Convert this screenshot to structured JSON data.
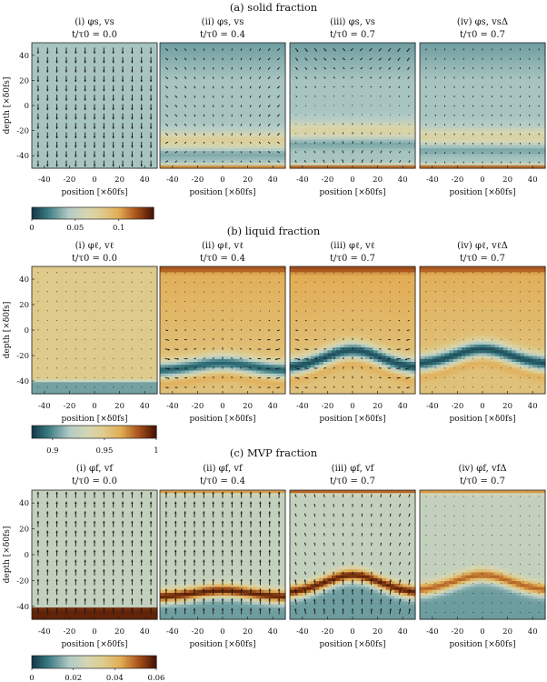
{
  "chart_data": [
    {
      "type": "heatmap",
      "title": "(a) solid fraction",
      "xlabel": "position [×δ0fs]",
      "ylabel": "depth [×δ0fs]",
      "xlim": [
        -50,
        50
      ],
      "ylim": [
        -50,
        50
      ],
      "xticks": [
        "-40",
        "-20",
        "0",
        "20",
        "40"
      ],
      "yticks": [
        "40",
        "20",
        "0",
        "-20",
        "-40"
      ],
      "colorbar": {
        "range": [
          0,
          0.14
        ],
        "ticks": [
          "0",
          "0.05",
          "0.1"
        ],
        "values": [
          0,
          0.05,
          0.1
        ]
      },
      "panels": [
        {
          "label": "(i) φs, vs",
          "time": "t/τ0 = 0.0",
          "field_kind": "uniform",
          "base": 0.04,
          "band_y": -48,
          "band_val": 0.04,
          "arrows": "down-uniform"
        },
        {
          "label": "(ii) φs, vs",
          "time": "t/τ0 = 0.4",
          "field_kind": "solid",
          "base": 0.04,
          "top_val": 0.02,
          "band_y": -28,
          "band_val": 0.075,
          "bottom_val": 0.12,
          "arrows": "converge"
        },
        {
          "label": "(iii) φs, vs",
          "time": "t/τ0 = 0.7",
          "field_kind": "solid",
          "base": 0.04,
          "top_val": 0.02,
          "band_y": -20,
          "band_val": 0.07,
          "bottom_val": 0.13,
          "arrows": "swirl"
        },
        {
          "label": "(iv) φs, vsΔ",
          "time": "t/τ0 = 0.7",
          "field_kind": "solid",
          "base": 0.04,
          "top_val": 0.02,
          "band_y": -25,
          "band_val": 0.07,
          "bottom_val": 0.13,
          "arrows": "down-small"
        }
      ]
    },
    {
      "type": "heatmap",
      "title": "(b) liquid fraction",
      "xlabel": "position [×δ0fs]",
      "ylabel": "depth [×δ0fs]",
      "xlim": [
        -50,
        50
      ],
      "ylim": [
        -50,
        50
      ],
      "xticks": [
        "-40",
        "-20",
        "0",
        "20",
        "40"
      ],
      "yticks": [
        "40",
        "20",
        "0",
        "-20",
        "-40"
      ],
      "colorbar": {
        "range": [
          0.88,
          1.0
        ],
        "ticks": [
          "0.9",
          "0.95",
          "1"
        ],
        "values": [
          0.9,
          0.95,
          1.0
        ]
      },
      "panels": [
        {
          "label": "(i) φℓ, vℓ",
          "time": "t/τ0 = 0.0",
          "field_kind": "liquid-flat",
          "base": 0.95,
          "band_y": -45,
          "band_val": 0.905,
          "arrows": "tiny"
        },
        {
          "label": "(ii) φℓ, vℓ",
          "time": "t/τ0 = 0.4",
          "field_kind": "liquid-band",
          "base": 0.955,
          "top_val": 0.975,
          "band_y": -32,
          "bump": 6,
          "band_val": 0.89,
          "arrows": "up-curl"
        },
        {
          "label": "(iii) φℓ, vℓ",
          "time": "t/τ0 = 0.7",
          "field_kind": "liquid-band",
          "base": 0.955,
          "top_val": 0.98,
          "band_y": -30,
          "bump": 14,
          "band_val": 0.885,
          "arrows": "up-curl"
        },
        {
          "label": "(iv) φℓ, vℓΔ",
          "time": "t/τ0 = 0.7",
          "field_kind": "liquid-band",
          "base": 0.955,
          "top_val": 0.975,
          "band_y": -27,
          "bump": 12,
          "band_val": 0.885,
          "arrows": "tiny"
        }
      ]
    },
    {
      "type": "heatmap",
      "title": "(c) MVP fraction",
      "xlabel": "position [×δ0fs]",
      "ylabel": "depth [×δ0fs]",
      "xlim": [
        -50,
        50
      ],
      "ylim": [
        -50,
        50
      ],
      "xticks": [
        "-40",
        "-20",
        "0",
        "20",
        "40"
      ],
      "yticks": [
        "40",
        "20",
        "0",
        "-20",
        "-40"
      ],
      "colorbar": {
        "range": [
          0,
          0.06
        ],
        "ticks": [
          "0",
          "0.02",
          "0.04",
          "0.06"
        ],
        "values": [
          0,
          0.02,
          0.04,
          0.06
        ]
      },
      "panels": [
        {
          "label": "(i) φf, vf",
          "time": "t/τ0 = 0.0",
          "field_kind": "mvp-bottom",
          "base": 0.022,
          "band_y": -46,
          "band_val": 0.058,
          "arrows": "up-uniform"
        },
        {
          "label": "(ii) φf, vf",
          "time": "t/τ0 = 0.4",
          "field_kind": "mvp-band",
          "base": 0.022,
          "below_val": 0.012,
          "band_y": -33,
          "bump": 5,
          "band_val": 0.058,
          "top_val": 0.045,
          "arrows": "up-uniform"
        },
        {
          "label": "(iii) φf, vf",
          "time": "t/τ0 = 0.7",
          "field_kind": "mvp-band",
          "base": 0.022,
          "below_val": 0.012,
          "band_y": -30,
          "bump": 14,
          "band_val": 0.058,
          "top_val": 0.05,
          "arrows": "up-fan"
        },
        {
          "label": "(iv) φf, vfΔ",
          "time": "t/τ0 = 0.7",
          "field_kind": "mvp-band",
          "base": 0.022,
          "below_val": 0.012,
          "band_y": -28,
          "bump": 12,
          "band_val": 0.05,
          "top_val": 0.045,
          "arrows": "tiny"
        }
      ]
    }
  ]
}
